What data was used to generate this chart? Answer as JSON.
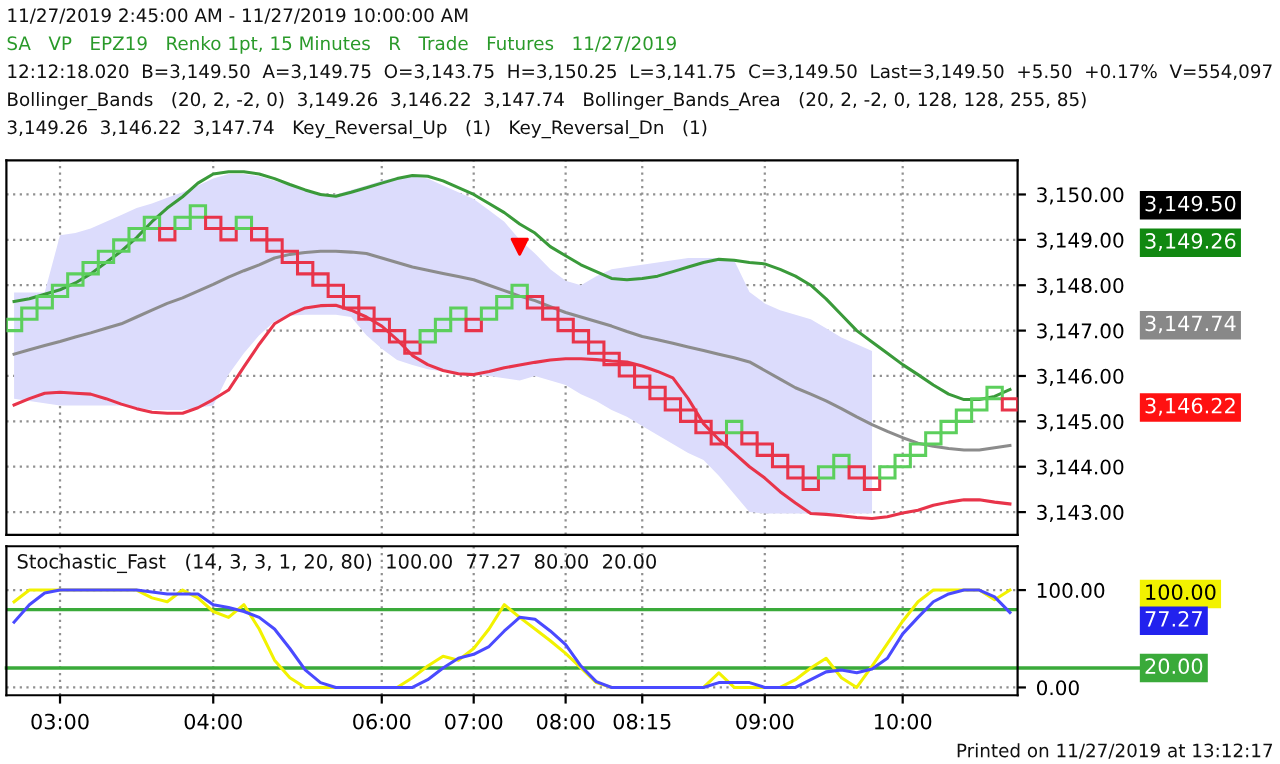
{
  "chart_data": [
    {
      "type": "candlestick",
      "categories": [
        null,
        null,
        null,
        null,
        null,
        null,
        null,
        null,
        null,
        null,
        null,
        null,
        null,
        null,
        null,
        null,
        null,
        null,
        null,
        null,
        null,
        null,
        null,
        null,
        null,
        null,
        null,
        null,
        null,
        null,
        null,
        null,
        null,
        null,
        null,
        null,
        null,
        null,
        null,
        null,
        null,
        null,
        null,
        null,
        null,
        null,
        null,
        null,
        null,
        null,
        null,
        null,
        null,
        null,
        null,
        null,
        null,
        null,
        null,
        null,
        null,
        null,
        null,
        null,
        null,
        null
      ],
      "ohlc": [
        [
          3147,
          3147.25,
          3147,
          3147.25
        ],
        [
          3147.25,
          3147.5,
          3147.25,
          3147.5
        ],
        [
          3147.5,
          3147.75,
          3147.5,
          3147.75
        ],
        [
          3147.75,
          3148,
          3147.75,
          3148
        ],
        [
          3148,
          3148.25,
          3148,
          3148.25
        ],
        [
          3148.25,
          3148.5,
          3148.25,
          3148.5
        ],
        [
          3148.5,
          3148.75,
          3148.5,
          3148.75
        ],
        [
          3148.75,
          3149,
          3148.75,
          3149
        ],
        [
          3149,
          3149.25,
          3149,
          3149.25
        ],
        [
          3149.25,
          3149.5,
          3149.25,
          3149.5
        ],
        [
          3149.25,
          3149.25,
          3149,
          3149
        ],
        [
          3149.25,
          3149.5,
          3149.25,
          3149.5
        ],
        [
          3149.5,
          3149.75,
          3149.5,
          3149.75
        ],
        [
          3149.5,
          3149.5,
          3149.25,
          3149.25
        ],
        [
          3149.25,
          3149.25,
          3149,
          3149
        ],
        [
          3149.25,
          3149.5,
          3149.25,
          3149.5
        ],
        [
          3149.25,
          3149.25,
          3149,
          3149
        ],
        [
          3149,
          3149,
          3148.75,
          3148.75
        ],
        [
          3148.75,
          3148.75,
          3148.5,
          3148.5
        ],
        [
          3148.5,
          3148.5,
          3148.25,
          3148.25
        ],
        [
          3148.25,
          3148.25,
          3148,
          3148
        ],
        [
          3148,
          3148,
          3147.75,
          3147.75
        ],
        [
          3147.75,
          3147.75,
          3147.5,
          3147.5
        ],
        [
          3147.5,
          3147.5,
          3147.25,
          3147.25
        ],
        [
          3147.25,
          3147.25,
          3147,
          3147
        ],
        [
          3147,
          3147,
          3146.75,
          3146.75
        ],
        [
          3146.75,
          3146.75,
          3146.5,
          3146.5
        ],
        [
          3146.75,
          3147,
          3146.75,
          3147
        ],
        [
          3147,
          3147.25,
          3147,
          3147.25
        ],
        [
          3147.25,
          3147.5,
          3147.25,
          3147.5
        ],
        [
          3147.25,
          3147.25,
          3147,
          3147
        ],
        [
          3147.25,
          3147.5,
          3147.25,
          3147.5
        ],
        [
          3147.5,
          3147.75,
          3147.5,
          3147.75
        ],
        [
          3147.75,
          3148,
          3147.75,
          3148
        ],
        [
          3147.75,
          3147.75,
          3147.5,
          3147.5
        ],
        [
          3147.5,
          3147.5,
          3147.25,
          3147.25
        ],
        [
          3147.25,
          3147.25,
          3147,
          3147
        ],
        [
          3147,
          3147,
          3146.75,
          3146.75
        ],
        [
          3146.75,
          3146.75,
          3146.5,
          3146.5
        ],
        [
          3146.5,
          3146.5,
          3146.25,
          3146.25
        ],
        [
          3146.25,
          3146.25,
          3146,
          3146
        ],
        [
          3146,
          3146,
          3145.75,
          3145.75
        ],
        [
          3145.75,
          3145.75,
          3145.5,
          3145.5
        ],
        [
          3145.5,
          3145.5,
          3145.25,
          3145.25
        ],
        [
          3145.25,
          3145.25,
          3145,
          3145
        ],
        [
          3145,
          3145,
          3144.75,
          3144.75
        ],
        [
          3144.75,
          3144.75,
          3144.5,
          3144.5
        ],
        [
          3144.75,
          3145,
          3144.75,
          3145
        ],
        [
          3144.75,
          3144.75,
          3144.5,
          3144.5
        ],
        [
          3144.5,
          3144.5,
          3144.25,
          3144.25
        ],
        [
          3144.25,
          3144.25,
          3144,
          3144
        ],
        [
          3144,
          3144,
          3143.75,
          3143.75
        ],
        [
          3143.75,
          3143.75,
          3143.5,
          3143.5
        ],
        [
          3143.75,
          3144,
          3143.75,
          3144
        ],
        [
          3144,
          3144.25,
          3144,
          3144.25
        ],
        [
          3144,
          3144,
          3143.75,
          3143.75
        ],
        [
          3143.75,
          3143.75,
          3143.5,
          3143.5
        ],
        [
          3143.75,
          3144,
          3143.75,
          3144
        ],
        [
          3144,
          3144.25,
          3144,
          3144.25
        ],
        [
          3144.25,
          3144.5,
          3144.25,
          3144.5
        ],
        [
          3144.5,
          3144.75,
          3144.5,
          3144.75
        ],
        [
          3144.75,
          3145,
          3144.75,
          3145
        ],
        [
          3145,
          3145.25,
          3145,
          3145.25
        ],
        [
          3145.25,
          3145.5,
          3145.25,
          3145.5
        ],
        [
          3145.5,
          3145.75,
          3145.5,
          3145.75
        ],
        [
          3145.5,
          3145.5,
          3145.25,
          3145.25
        ]
      ],
      "colors": [
        "#5ccf5c",
        "#5ccf5c",
        "#5ccf5c",
        "#5ccf5c",
        "#5ccf5c",
        "#5ccf5c",
        "#5ccf5c",
        "#5ccf5c",
        "#5ccf5c",
        "#5ccf5c",
        "#e8344a",
        "#5ccf5c",
        "#5ccf5c",
        "#e8344a",
        "#e8344a",
        "#5ccf5c",
        "#e8344a",
        "#e8344a",
        "#e8344a",
        "#e8344a",
        "#e8344a",
        "#e8344a",
        "#e8344a",
        "#e8344a",
        "#e8344a",
        "#e8344a",
        "#e8344a",
        "#5ccf5c",
        "#5ccf5c",
        "#5ccf5c",
        "#e8344a",
        "#5ccf5c",
        "#5ccf5c",
        "#5ccf5c",
        "#e8344a",
        "#e8344a",
        "#e8344a",
        "#e8344a",
        "#e8344a",
        "#e8344a",
        "#e8344a",
        "#e8344a",
        "#e8344a",
        "#e8344a",
        "#e8344a",
        "#e8344a",
        "#e8344a",
        "#5ccf5c",
        "#e8344a",
        "#e8344a",
        "#e8344a",
        "#e8344a",
        "#e8344a",
        "#5ccf5c",
        "#5ccf5c",
        "#e8344a",
        "#e8344a",
        "#5ccf5c",
        "#5ccf5c",
        "#5ccf5c",
        "#5ccf5c",
        "#5ccf5c",
        "#5ccf5c",
        "#5ccf5c",
        "#5ccf5c",
        "#e8344a"
      ],
      "series": [
        {
          "type": "line",
          "color": "#8c8c8c",
          "upper": [
            3147.84,
            3147.84,
            3147.84,
            3149.1,
            3149.15,
            3149.25,
            3149.4,
            3149.55,
            3149.7,
            3149.8,
            3149.93,
            3150.05,
            3150.2,
            3150.35,
            3150.45,
            3150.45,
            3150.4,
            3150.3,
            3150.2,
            3150.1,
            3150.0,
            3150.0,
            3150.1,
            3150.2,
            3150.3,
            3150.38,
            3150.4,
            3150.35,
            3150.2,
            3150.05,
            3149.9,
            3149.65,
            3149.4,
            3149.0,
            3148.7,
            3148.35,
            3148.1,
            3148.0,
            3148.2,
            3148.35,
            3148.4,
            3148.45,
            3148.5,
            3148.55,
            3148.6,
            3148.6,
            3148.6,
            3148.55,
            3147.85,
            3147.6,
            3147.45,
            3147.35,
            3147.25,
            3147.05,
            3146.85,
            3146.7,
            3146.55,
            null,
            null,
            null,
            null,
            null,
            null,
            null,
            null,
            null
          ],
          "lower": [
            3145.5,
            3145.45,
            3145.4,
            3145.35,
            3145.35,
            3145.35,
            3145.35,
            3145.35,
            3145.3,
            3145.25,
            3145.25,
            3145.25,
            3145.3,
            3145.35,
            3146.03,
            3146.5,
            3146.9,
            3147.2,
            3147.33,
            3147.35,
            3147.35,
            3147.35,
            3147.3,
            3146.9,
            3146.6,
            3146.35,
            3146.24,
            3146.15,
            3146.1,
            3146.05,
            3146.03,
            3146.0,
            3145.95,
            3145.9,
            3146.0,
            3145.9,
            3145.8,
            3145.6,
            3145.45,
            3145.25,
            3145.1,
            3144.9,
            3144.7,
            3144.5,
            3144.3,
            3144.15,
            3143.8,
            3143.4,
            3143.0,
            3142.97,
            3142.97,
            3142.97,
            3142.97,
            3142.97,
            3142.97,
            3142.97,
            3142.97,
            null,
            null,
            null,
            null,
            null,
            null,
            null,
            null,
            null
          ],
          "values": [
            3146.48,
            3146.58,
            3146.67,
            3146.76,
            3146.86,
            3146.95,
            3147.05,
            3147.15,
            3147.3,
            3147.45,
            3147.6,
            3147.72,
            3147.87,
            3148.02,
            3148.18,
            3148.32,
            3148.45,
            3148.6,
            3148.68,
            3148.72,
            3148.75,
            3148.75,
            3148.73,
            3148.7,
            3148.6,
            3148.5,
            3148.4,
            3148.33,
            3148.26,
            3148.19,
            3148.12,
            3148.0,
            3147.88,
            3147.76,
            3147.66,
            3147.53,
            3147.4,
            3147.3,
            3147.2,
            3147.1,
            3146.98,
            3146.87,
            3146.8,
            3146.72,
            3146.64,
            3146.56,
            3146.48,
            3146.4,
            3146.31,
            3146.12,
            3145.93,
            3145.74,
            3145.6,
            3145.45,
            3145.28,
            3145.1,
            3144.93,
            3144.78,
            3144.64,
            3144.52,
            3144.45,
            3144.4,
            3144.37,
            3144.37,
            3144.42,
            3144.47
          ]
        },
        {
          "type": "line",
          "color": "#3a9a3a",
          "values": [
            3147.64,
            3147.7,
            3147.8,
            3147.9,
            3148.05,
            3148.25,
            3148.5,
            3148.75,
            3149.05,
            3149.4,
            3149.7,
            3149.95,
            3150.25,
            3150.45,
            3150.5,
            3150.5,
            3150.45,
            3150.35,
            3150.22,
            3150.1,
            3150.0,
            3149.96,
            3150.05,
            3150.15,
            3150.25,
            3150.35,
            3150.42,
            3150.4,
            3150.3,
            3150.15,
            3150.0,
            3149.8,
            3149.6,
            3149.35,
            3149.15,
            3148.85,
            3148.65,
            3148.45,
            3148.3,
            3148.15,
            3148.12,
            3148.15,
            3148.2,
            3148.3,
            3148.4,
            3148.5,
            3148.57,
            3148.55,
            3148.5,
            3148.47,
            3148.35,
            3148.2,
            3148.0,
            3147.7,
            3147.35,
            3147.0,
            3146.75,
            3146.5,
            3146.25,
            3146.03,
            3145.8,
            3145.6,
            3145.48,
            3145.48,
            3145.55,
            3145.7
          ]
        },
        {
          "type": "line",
          "color": "#e8344a",
          "values": [
            3145.36,
            3145.5,
            3145.62,
            3145.64,
            3145.62,
            3145.6,
            3145.5,
            3145.38,
            3145.28,
            3145.2,
            3145.18,
            3145.18,
            3145.3,
            3145.48,
            3145.69,
            3146.2,
            3146.7,
            3147.15,
            3147.35,
            3147.5,
            3147.55,
            3147.56,
            3147.45,
            3147.3,
            3147.1,
            3146.8,
            3146.45,
            3146.25,
            3146.12,
            3146.05,
            3146.03,
            3146.1,
            3146.18,
            3146.24,
            3146.3,
            3146.35,
            3146.38,
            3146.38,
            3146.36,
            3146.33,
            3146.31,
            3146.22,
            3146.1,
            3145.96,
            3145.5,
            3144.95,
            3144.6,
            3144.3,
            3144.0,
            3143.75,
            3143.45,
            3143.2,
            3142.97,
            3142.95,
            3142.92,
            3142.88,
            3142.86,
            3142.9,
            3142.98,
            3143.04,
            3143.15,
            3143.22,
            3143.27,
            3143.27,
            3143.22,
            3143.18
          ]
        },
        {
          "type": "scatter",
          "color": "#ff0000",
          "marker": "triangle",
          "values": [
            null,
            null,
            null,
            null,
            null,
            null,
            null,
            null,
            null,
            null,
            null,
            null,
            null,
            null,
            null,
            null,
            null,
            null,
            null,
            null,
            null,
            null,
            null,
            null,
            null,
            null,
            null,
            null,
            null,
            null,
            null,
            null,
            null,
            3148.85,
            null,
            null,
            null,
            null,
            null,
            null,
            null,
            null,
            null,
            null,
            null,
            null,
            null,
            null,
            null,
            null,
            null,
            null,
            null,
            null,
            null,
            null,
            null,
            null,
            null,
            null,
            null,
            null,
            null,
            null,
            null,
            null
          ]
        }
      ],
      "ylim": [
        3142.5,
        3150.75
      ],
      "yticks": [
        {
          "value": 3143,
          "label": "3,143.00"
        },
        {
          "value": 3144,
          "label": "3,144.00"
        },
        {
          "value": 3145,
          "label": "3,145.00"
        },
        {
          "value": 3146,
          "label": "3,146.00"
        },
        {
          "value": 3147,
          "label": "3,147.00"
        },
        {
          "value": 3148,
          "label": "3,148.00"
        },
        {
          "value": 3149,
          "label": "3,149.00"
        },
        {
          "value": 3150,
          "label": "3,150.00"
        }
      ],
      "grid": true,
      "tick_labels": "y",
      "annotations": [
        "11/27/2019 2:45:00 AM - 11/27/2019 10:00:00 AM",
        "SA   VP   EPZ19   Renko 1pt, 15 Minutes   R   Trade   Futures   11/27/2019",
        "12:12:18.020  B=3,149.50  A=3,149.75  O=3,143.75  H=3,150.25  L=3,141.75  C=3,149.50  Last=3,149.50  +5.50  +0.17%  V=554,097",
        "Bollinger_Bands   (20, 2, -2, 0)  3,149.26  3,146.22  3,147.74   Bollinger_Bands_Area   (20, 2, -2, 0, 128, 128, 255, 85)",
        "3,149.26  3,146.22  3,147.74   Key_Reversal_Up   (1)   Key_Reversal_Dn   (1)",
        "3,149.50",
        "3,149.26",
        "3,147.74",
        "3,146.22"
      ]
    },
    {
      "type": "line",
      "categories": [
        null,
        null,
        null,
        "03:00",
        null,
        null,
        null,
        null,
        null,
        null,
        null,
        null,
        null,
        "04:00",
        null,
        null,
        null,
        null,
        null,
        null,
        null,
        null,
        null,
        null,
        "06:00",
        null,
        null,
        null,
        null,
        null,
        "07:00",
        null,
        null,
        null,
        null,
        null,
        "08:00",
        null,
        null,
        null,
        null,
        "08:15",
        null,
        null,
        null,
        null,
        null,
        null,
        null,
        "09:00",
        null,
        null,
        null,
        null,
        null,
        null,
        null,
        null,
        "10:00",
        null,
        null,
        null,
        null,
        null,
        null,
        null
      ],
      "series": [
        {
          "color": "#f2f200",
          "values": [
            88,
            100,
            100,
            100,
            100,
            100,
            100,
            100,
            100,
            92,
            88,
            100,
            92,
            78,
            72,
            85,
            60,
            28,
            10,
            0,
            0,
            0,
            0,
            0,
            0,
            0,
            10,
            22,
            32,
            28,
            40,
            60,
            85,
            72,
            60,
            48,
            35,
            20,
            5,
            0,
            0,
            0,
            0,
            0,
            0,
            0,
            15,
            0,
            0,
            0,
            0,
            8,
            20,
            30,
            10,
            0,
            22,
            45,
            68,
            88,
            100,
            100,
            100,
            100,
            90,
            100
          ]
        },
        {
          "color": "#4a4aff",
          "values": [
            67,
            85,
            97,
            100,
            100,
            100,
            100,
            100,
            100,
            98,
            96,
            96,
            96,
            85,
            82,
            78,
            72,
            60,
            40,
            18,
            5,
            0,
            0,
            0,
            0,
            0,
            0,
            8,
            20,
            30,
            34,
            42,
            58,
            72,
            70,
            58,
            44,
            22,
            6,
            0,
            0,
            0,
            0,
            0,
            0,
            0,
            5,
            5,
            5,
            0,
            0,
            0,
            8,
            16,
            18,
            15,
            19,
            30,
            55,
            72,
            88,
            96,
            100,
            100,
            93,
            77
          ]
        }
      ],
      "ylim": [
        -8,
        145
      ],
      "yticks": [
        {
          "value": 0,
          "label": "0.00"
        },
        {
          "value": 100,
          "label": "100.00"
        }
      ],
      "ref_lines": [
        {
          "axis": "y",
          "value": 80,
          "color": "#3aaa3a"
        },
        {
          "axis": "y",
          "value": 20,
          "label": "20.00",
          "color": "#3aaa3a"
        }
      ],
      "grid": true,
      "annotations": [
        "Stochastic_Fast   (14, 3, 3, 1, 20, 80)  100.00  77.27  80.00  20.00",
        "Printed on 11/27/2019 at 13:12:17",
        "100.00",
        "77.27"
      ]
    }
  ]
}
